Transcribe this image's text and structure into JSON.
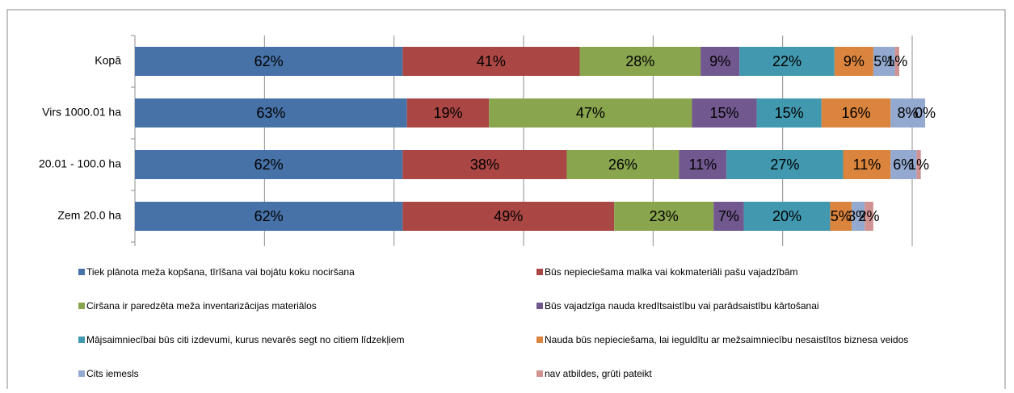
{
  "chart_data": {
    "type": "stacked-bar-horizontal",
    "categories": [
      "Kopā",
      "Virs 1000.01 ha",
      "20.01 - 100.0 ha",
      "Zem 20.0 ha"
    ],
    "series": [
      {
        "name": "Tiek plānota meža kopšana, tīrīšana vai bojātu koku nociršana",
        "color": "#4672a8",
        "values": [
          62,
          63,
          62,
          62
        ],
        "value_labels": [
          "62%",
          "63%",
          "62%",
          "62%"
        ]
      },
      {
        "name": "Būs nepieciešama malka vai kokmateriāli pašu vajadzībām",
        "color": "#aa4643",
        "values": [
          41,
          19,
          38,
          49
        ],
        "value_labels": [
          "41%",
          "19%",
          "38%",
          "49%"
        ]
      },
      {
        "name": "Ciršana ir paredzēta meža inventarizācijas materiālos",
        "color": "#89a54e",
        "values": [
          28,
          47,
          26,
          23
        ],
        "value_labels": [
          "28%",
          "47%",
          "26%",
          "23%"
        ]
      },
      {
        "name": "Būs vajadzīga nauda kredītsaistību vai parādsaistību kārtošanai",
        "color": "#71588f",
        "values": [
          9,
          15,
          11,
          7
        ],
        "value_labels": [
          "9%",
          "15%",
          "11%",
          "7%"
        ]
      },
      {
        "name": "Mājsaimniecībai būs citi izdevumi, kurus nevarēs segt no citiem līdzekļiem",
        "color": "#4198af",
        "values": [
          22,
          15,
          27,
          20
        ],
        "value_labels": [
          "22%",
          "15%",
          "27%",
          "20%"
        ]
      },
      {
        "name": "Nauda būs nepieciešama, lai ieguldītu ar mežsaimniecību nesaistītos biznesa veidos",
        "color": "#db843d",
        "values": [
          9,
          16,
          11,
          5
        ],
        "value_labels": [
          "9%",
          "16%",
          "11%",
          "5%"
        ]
      },
      {
        "name": "Cits iemesls",
        "color": "#93a9cf",
        "values": [
          5,
          8,
          6,
          3
        ],
        "value_labels": [
          "5%",
          "8%",
          "6%",
          "3%"
        ]
      },
      {
        "name": "nav atbildes, grūti pateikt",
        "color": "#d19392",
        "values": [
          1,
          0,
          1,
          2
        ],
        "value_labels": [
          "1%",
          "0%",
          "1%",
          "2%"
        ]
      }
    ],
    "xlim": [
      0,
      180
    ],
    "xticks": [
      0,
      30,
      60,
      90,
      120,
      150,
      180
    ],
    "grid": true
  }
}
